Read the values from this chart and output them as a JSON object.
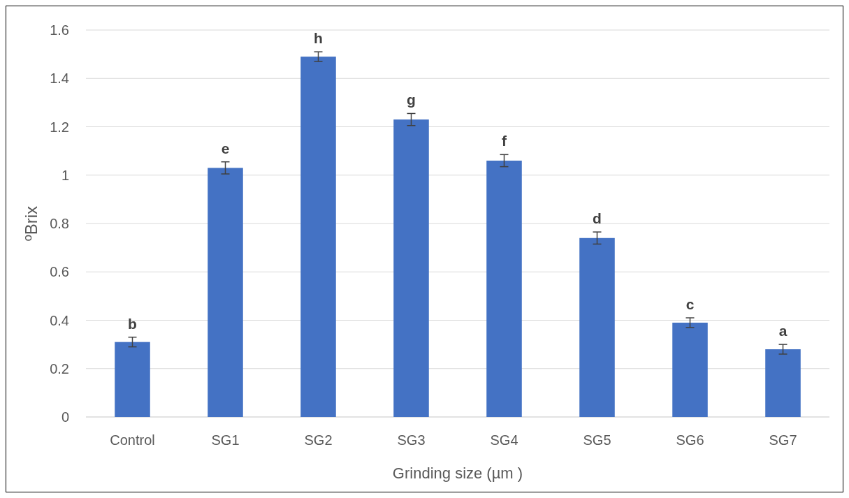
{
  "chart_data": {
    "type": "bar",
    "xlabel": "Grinding size (µm )",
    "ylabel": "ºBrix",
    "categories": [
      "Control",
      "SG1",
      "SG2",
      "SG3",
      "SG4",
      "SG5",
      "SG6",
      "SG7"
    ],
    "values": [
      0.31,
      1.03,
      1.49,
      1.23,
      1.06,
      0.74,
      0.39,
      0.28
    ],
    "errors": [
      0.02,
      0.025,
      0.02,
      0.025,
      0.025,
      0.025,
      0.02,
      0.02
    ],
    "color": "#4472c4",
    "ylim": [
      0,
      1.6
    ],
    "yticks": [
      0,
      0.2,
      0.4,
      0.6,
      0.8,
      1,
      1.2,
      1.4,
      1.6
    ],
    "grid": "y",
    "annotations": [
      {
        "text": "b",
        "x": "Control",
        "y": 0.33
      },
      {
        "text": "e",
        "x": "SG1",
        "y": 1.055
      },
      {
        "text": "h",
        "x": "SG2",
        "y": 1.51
      },
      {
        "text": "g",
        "x": "SG3",
        "y": 1.255
      },
      {
        "text": "f",
        "x": "SG4",
        "y": 1.085
      },
      {
        "text": "d",
        "x": "SG5",
        "y": 0.765
      },
      {
        "text": "c",
        "x": "SG6",
        "y": 0.41
      },
      {
        "text": "a",
        "x": "SG7",
        "y": 0.3
      }
    ]
  }
}
